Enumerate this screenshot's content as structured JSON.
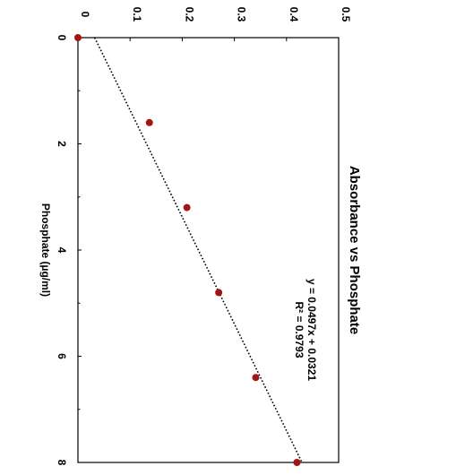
{
  "chart_data": {
    "type": "scatter",
    "orientation": "rotated-90-clockwise",
    "title": "Absorbance vs Phosphate",
    "xlabel": "Phosphate (µg/ml)",
    "ylabel": "",
    "xlim": [
      0,
      8
    ],
    "ylim": [
      0,
      0.5
    ],
    "x_ticks": [
      "0",
      "2",
      "4",
      "6",
      "8"
    ],
    "y_ticks": [
      "0",
      "0.1",
      "0.2",
      "0.3",
      "0.4",
      "0.5"
    ],
    "x": [
      0,
      1.6,
      3.2,
      4.8,
      6.4,
      8.0
    ],
    "y": [
      0.0,
      0.137,
      0.209,
      0.27,
      0.341,
      0.42
    ],
    "trendline": {
      "type": "linear",
      "slope": 0.0497,
      "intercept": 0.0321,
      "style": "dotted"
    },
    "equation": "y = 0.0497x + 0.0321",
    "r_squared": "R² = 0.9793",
    "grid": false,
    "legend": "none",
    "colors": {
      "marker": "#a31515",
      "trendline": "#000000"
    }
  }
}
